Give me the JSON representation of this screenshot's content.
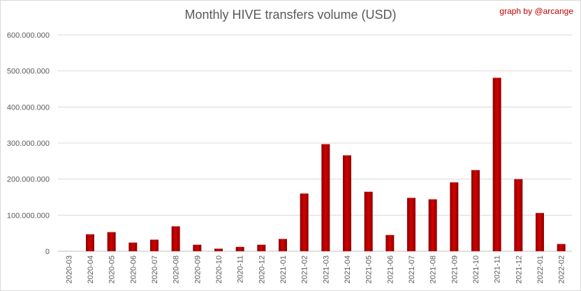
{
  "chart_data": {
    "type": "bar",
    "title": "Monthly HIVE transfers volume (USD)",
    "credit": "graph by @arcange",
    "xlabel": "",
    "ylabel": "",
    "ylim": [
      0,
      600000000
    ],
    "yticks": [
      {
        "value": 0,
        "label": "0"
      },
      {
        "value": 100000000,
        "label": "100.000.000"
      },
      {
        "value": 200000000,
        "label": "200.000.000"
      },
      {
        "value": 300000000,
        "label": "300.000.000"
      },
      {
        "value": 400000000,
        "label": "400.000.000"
      },
      {
        "value": 500000000,
        "label": "500.000.000"
      },
      {
        "value": 600000000,
        "label": "600.000.000"
      }
    ],
    "grid": true,
    "legend": "none",
    "bar_color": "#c00000",
    "categories": [
      "2020-03",
      "2020-04",
      "2020-05",
      "2020-06",
      "2020-07",
      "2020-08",
      "2020-09",
      "2020-10",
      "2020-11",
      "2020-12",
      "2021-01",
      "2021-02",
      "2021-03",
      "2021-04",
      "2021-05",
      "2021-06",
      "2021-07",
      "2021-08",
      "2021-09",
      "2021-10",
      "2021-11",
      "2021-12",
      "2022-01",
      "2022-02"
    ],
    "values": [
      0,
      47000000,
      53000000,
      24000000,
      32000000,
      69000000,
      18000000,
      7000000,
      12000000,
      18000000,
      34000000,
      160000000,
      297000000,
      266000000,
      165000000,
      45000000,
      148000000,
      144000000,
      191000000,
      225000000,
      481000000,
      200000000,
      106000000,
      20000000
    ]
  }
}
